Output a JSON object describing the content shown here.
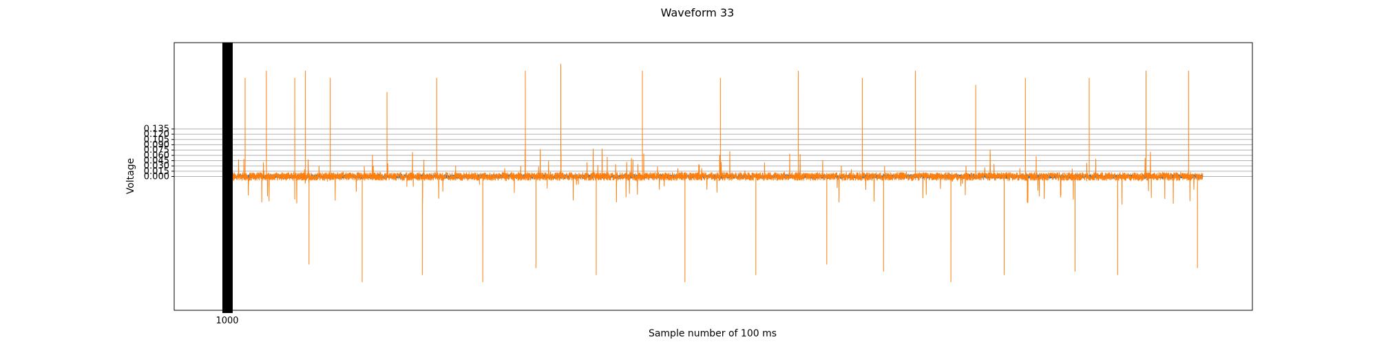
{
  "chart_data": {
    "type": "line",
    "title": "Waveform 33",
    "xlabel": "Sample number of 100 ms",
    "ylabel": "Voltage",
    "ylim": [
      -0.38,
      0.38
    ],
    "xlim": [
      -140,
      2900
    ],
    "ytick_values": [
      0.0,
      0.015,
      0.03,
      0.045,
      0.06,
      0.075,
      0.09,
      0.105,
      0.12,
      0.135
    ],
    "ytick_labels": [
      "0.000",
      "0.015",
      "0.030",
      "0.045",
      "0.060",
      "0.075",
      "0.090",
      "0.105",
      "0.120",
      "0.135"
    ],
    "xtick_label": "1000",
    "grid": true,
    "legend": false,
    "colors": {
      "series_1": "#1f77b4",
      "series_2": "#ff7f0e",
      "grid": "#b0b0b0",
      "frame": "#000000"
    },
    "series": [
      {
        "x_range": [
          0,
          2760
        ],
        "peak_times": [],
        "peak_values": [],
        "noise_amplitude": 0.006
      },
      {
        "x_range": [
          0,
          2760
        ],
        "noise_amplitude": 0.012,
        "peak_times": [
          60,
          120,
          200,
          230,
          240,
          300,
          390,
          460,
          560,
          600,
          730,
          850,
          880,
          950,
          1050,
          1180,
          1300,
          1400,
          1500,
          1620,
          1700,
          1800,
          1860,
          1950,
          2050,
          2120,
          2200,
          2260,
          2400,
          2440,
          2520,
          2600,
          2720,
          2745
        ],
        "peak_values": [
          0.28,
          0.3,
          0.28,
          0.3,
          -0.25,
          0.28,
          -0.3,
          0.24,
          -0.28,
          0.28,
          -0.3,
          0.3,
          -0.26,
          0.32,
          -0.28,
          0.3,
          -0.3,
          0.28,
          -0.28,
          0.3,
          -0.25,
          0.28,
          -0.27,
          0.3,
          -0.3,
          0.26,
          -0.28,
          0.28,
          -0.27,
          0.28,
          -0.28,
          0.3,
          0.3,
          -0.26
        ]
      }
    ]
  }
}
